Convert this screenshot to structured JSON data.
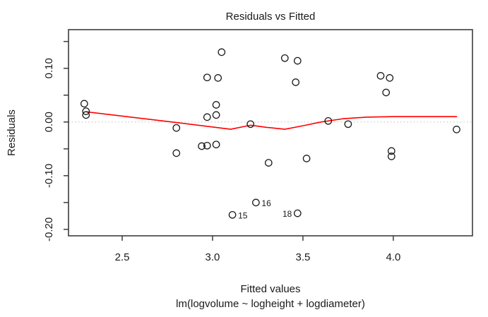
{
  "chart_data": {
    "type": "scatter",
    "title": "Residuals vs Fitted",
    "xlabel": "Fitted values",
    "ylabel": "Residuals",
    "caption": "lm(logvolume ~ logheight + logdiameter)",
    "xlim": [
      2.203,
      4.438
    ],
    "ylim": [
      -0.212,
      0.172
    ],
    "grid": false,
    "legend": "none",
    "x_ticks": [
      {
        "v": 2.5,
        "label": "2.5"
      },
      {
        "v": 3.0,
        "label": "3.0"
      },
      {
        "v": 3.5,
        "label": "3.5"
      },
      {
        "v": 4.0,
        "label": "4.0"
      }
    ],
    "y_ticks": [
      {
        "v": -0.2,
        "label": "-0.20"
      },
      {
        "v": -0.15,
        "label": ""
      },
      {
        "v": -0.1,
        "label": "-0.10"
      },
      {
        "v": -0.05,
        "label": ""
      },
      {
        "v": 0.0,
        "label": "0.00"
      },
      {
        "v": 0.05,
        "label": ""
      },
      {
        "v": 0.1,
        "label": "0.10"
      },
      {
        "v": 0.15,
        "label": ""
      }
    ],
    "zero_line": {
      "y": 0.0
    },
    "points": [
      {
        "x": 2.29,
        "y": 0.034
      },
      {
        "x": 2.3,
        "y": 0.02
      },
      {
        "x": 2.3,
        "y": 0.013
      },
      {
        "x": 2.8,
        "y": -0.011
      },
      {
        "x": 2.8,
        "y": -0.058
      },
      {
        "x": 2.94,
        "y": -0.045
      },
      {
        "x": 2.97,
        "y": -0.044
      },
      {
        "x": 3.02,
        "y": -0.042
      },
      {
        "x": 2.97,
        "y": 0.083
      },
      {
        "x": 2.97,
        "y": 0.009
      },
      {
        "x": 3.02,
        "y": 0.032
      },
      {
        "x": 3.02,
        "y": 0.013
      },
      {
        "x": 3.03,
        "y": 0.082
      },
      {
        "x": 3.05,
        "y": 0.13
      },
      {
        "x": 3.11,
        "y": -0.173,
        "label": "15",
        "label_side": "right"
      },
      {
        "x": 3.21,
        "y": -0.004
      },
      {
        "x": 3.24,
        "y": -0.15,
        "label": "16",
        "label_side": "right"
      },
      {
        "x": 3.31,
        "y": -0.076
      },
      {
        "x": 3.4,
        "y": 0.119
      },
      {
        "x": 3.46,
        "y": 0.074
      },
      {
        "x": 3.47,
        "y": 0.114
      },
      {
        "x": 3.47,
        "y": -0.17,
        "label": "18",
        "label_side": "left"
      },
      {
        "x": 3.52,
        "y": -0.068
      },
      {
        "x": 3.64,
        "y": 0.002
      },
      {
        "x": 3.75,
        "y": -0.004
      },
      {
        "x": 3.93,
        "y": 0.086
      },
      {
        "x": 3.96,
        "y": 0.055
      },
      {
        "x": 3.98,
        "y": 0.082
      },
      {
        "x": 3.99,
        "y": -0.054
      },
      {
        "x": 3.99,
        "y": -0.064
      },
      {
        "x": 4.35,
        "y": -0.014
      }
    ],
    "smoother": {
      "points": [
        [
          2.3,
          0.019
        ],
        [
          2.8,
          -0.001
        ],
        [
          3.1,
          -0.0135
        ],
        [
          3.21,
          -0.006
        ],
        [
          3.3,
          -0.01
        ],
        [
          3.4,
          -0.0135
        ],
        [
          3.5,
          -0.007
        ],
        [
          3.6,
          0.0
        ],
        [
          3.72,
          0.006
        ],
        [
          3.85,
          0.009
        ],
        [
          4.0,
          0.01
        ],
        [
          4.35,
          0.01
        ]
      ]
    },
    "colors": {
      "point_stroke": "#1a1a1a",
      "smoother_line": "#ff0000",
      "zero_line": "#c6c6c6",
      "box": "#3d3d3d",
      "text": "#1a1a1a"
    }
  }
}
